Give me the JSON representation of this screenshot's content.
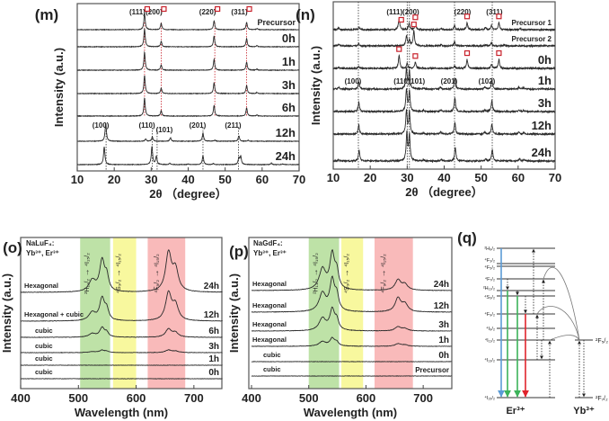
{
  "chart_data": [
    {
      "type": "line",
      "panel": "(m)",
      "xlabel": "2θ （degree）",
      "ylabel": "Intensity (a.u.)",
      "xlim": [
        10,
        70
      ],
      "xticks": [
        "10",
        "20",
        "30",
        "40",
        "50",
        "60",
        "70"
      ],
      "grid": false,
      "traces": [
        {
          "name": "Precursor",
          "peaks": [
            [
              28.2,
              0.9
            ],
            [
              32.7,
              0.35
            ],
            [
              47.0,
              0.5
            ],
            [
              55.8,
              0.4
            ],
            [
              58.6,
              0.06
            ]
          ]
        },
        {
          "name": "0h",
          "peaks": [
            [
              28.2,
              1.0
            ],
            [
              32.7,
              0.3
            ],
            [
              47.0,
              0.6
            ],
            [
              55.8,
              0.45
            ],
            [
              58.6,
              0.06
            ]
          ]
        },
        {
          "name": "1h",
          "peaks": [
            [
              28.2,
              1.0
            ],
            [
              32.7,
              0.3
            ],
            [
              47.0,
              0.6
            ],
            [
              55.8,
              0.45
            ],
            [
              58.6,
              0.06
            ]
          ]
        },
        {
          "name": "3h",
          "peaks": [
            [
              28.2,
              1.0
            ],
            [
              32.7,
              0.3
            ],
            [
              47.0,
              0.6
            ],
            [
              55.8,
              0.45
            ],
            [
              58.6,
              0.06
            ]
          ]
        },
        {
          "name": "6h",
          "peaks": [
            [
              28.2,
              1.0
            ],
            [
              32.7,
              0.3
            ],
            [
              47.0,
              0.6
            ],
            [
              55.8,
              0.45
            ],
            [
              58.6,
              0.06
            ]
          ]
        },
        {
          "name": "12h",
          "peaks": [
            [
              17.7,
              1.0
            ],
            [
              28.5,
              0.12
            ],
            [
              30.3,
              0.25
            ],
            [
              35.2,
              0.2
            ],
            [
              44.0,
              0.45
            ],
            [
              47.2,
              0.06
            ],
            [
              53.7,
              0.3
            ],
            [
              56.2,
              0.05
            ]
          ]
        },
        {
          "name": "24h",
          "peaks": [
            [
              17.3,
              1.0
            ],
            [
              30.2,
              1.0
            ],
            [
              31.4,
              0.45
            ],
            [
              35.0,
              0.08
            ],
            [
              40.0,
              0.04
            ],
            [
              44.0,
              0.5
            ],
            [
              46.8,
              0.06
            ],
            [
              53.7,
              0.35
            ],
            [
              54.2,
              0.45
            ],
            [
              62.5,
              0.08
            ],
            [
              65.5,
              0.04
            ]
          ]
        }
      ],
      "cubic_phase_color": "#c8202a",
      "cubic_hkl": [
        {
          "text": "(111)",
          "theta": 28.2
        },
        {
          "text": "(200)",
          "theta": 32.7
        },
        {
          "text": "(220)",
          "theta": 47.2
        },
        {
          "text": "(311)",
          "theta": 55.8
        }
      ],
      "cubic_markers": [
        {
          "trace": 0,
          "theta": 28.2
        },
        {
          "trace": 0,
          "theta": 32.7
        },
        {
          "trace": 0,
          "theta": 47.2
        },
        {
          "trace": 0,
          "theta": 55.8
        }
      ],
      "hex_hkl": [
        {
          "text": "(100)",
          "theta": 17.8
        },
        {
          "text": "(110)",
          "theta": 30.3
        },
        {
          "text": "(101)",
          "theta": 31.6
        },
        {
          "text": "(201)",
          "theta": 44.0
        },
        {
          "text": "(211)",
          "theta": 53.6
        }
      ]
    },
    {
      "type": "line",
      "panel": "(n)",
      "xlabel": "2θ （degree）",
      "ylabel": "Intensity (a.u.)",
      "xlim": [
        10,
        70
      ],
      "xticks": [
        "10",
        "20",
        "30",
        "40",
        "50",
        "60",
        "70"
      ],
      "grid": false,
      "traces": [
        {
          "name": "Precursor 1",
          "peaks": [
            [
              11.5,
              0.1
            ],
            [
              17.0,
              0.12
            ],
            [
              27.8,
              0.55
            ],
            [
              30.5,
              0.3
            ],
            [
              32.2,
              0.3
            ],
            [
              39.2,
              0.08
            ],
            [
              42.8,
              0.2
            ],
            [
              46.2,
              0.35
            ],
            [
              51.2,
              0.1
            ],
            [
              52.8,
              0.2
            ],
            [
              54.8,
              0.35
            ],
            [
              60.5,
              0.06
            ]
          ]
        },
        {
          "name": "Precursor 2",
          "peaks": [
            [
              11.5,
              0.06
            ],
            [
              16.9,
              0.12
            ],
            [
              29.8,
              0.5
            ],
            [
              30.6,
              0.3
            ],
            [
              31.8,
              0.75
            ],
            [
              39.2,
              0.06
            ],
            [
              42.8,
              0.2
            ],
            [
              51.2,
              0.06
            ],
            [
              52.8,
              0.15
            ],
            [
              56.2,
              0.05
            ]
          ]
        },
        {
          "name": "0h",
          "peaks": [
            [
              11.5,
              0.06
            ],
            [
              16.9,
              0.08
            ],
            [
              27.8,
              0.65
            ],
            [
              30.0,
              0.25
            ],
            [
              32.2,
              0.3
            ],
            [
              42.8,
              0.12
            ],
            [
              46.2,
              0.45
            ],
            [
              52.8,
              0.2
            ],
            [
              54.8,
              0.45
            ]
          ]
        },
        {
          "name": "1h",
          "peaks": [
            [
              11.5,
              0.1
            ],
            [
              16.9,
              0.35
            ],
            [
              29.8,
              1.0
            ],
            [
              30.6,
              0.9
            ],
            [
              34.4,
              0.06
            ],
            [
              39.0,
              0.1
            ],
            [
              42.9,
              0.55
            ],
            [
              51.0,
              0.12
            ],
            [
              52.9,
              0.45
            ],
            [
              60.2,
              0.1
            ],
            [
              61.5,
              0.06
            ]
          ]
        },
        {
          "name": "3h",
          "peaks": [
            [
              16.9,
              0.45
            ],
            [
              29.8,
              1.1
            ],
            [
              30.6,
              1.0
            ],
            [
              34.4,
              0.06
            ],
            [
              39.0,
              0.08
            ],
            [
              42.9,
              0.7
            ],
            [
              51.0,
              0.08
            ],
            [
              52.9,
              0.55
            ],
            [
              60.2,
              0.08
            ],
            [
              61.5,
              0.06
            ]
          ]
        },
        {
          "name": "12h",
          "peaks": [
            [
              16.9,
              0.45
            ],
            [
              29.8,
              1.2
            ],
            [
              30.6,
              1.1
            ],
            [
              34.4,
              0.06
            ],
            [
              39.0,
              0.1
            ],
            [
              42.9,
              0.6
            ],
            [
              51.0,
              0.1
            ],
            [
              52.9,
              0.5
            ],
            [
              60.2,
              0.1
            ],
            [
              61.5,
              0.06
            ]
          ]
        },
        {
          "name": "24h",
          "peaks": [
            [
              11.5,
              0.08
            ],
            [
              17.0,
              0.55
            ],
            [
              29.9,
              1.4
            ],
            [
              30.6,
              1.3
            ],
            [
              34.4,
              0.06
            ],
            [
              39.2,
              0.08
            ],
            [
              43.0,
              0.7
            ],
            [
              51.2,
              0.1
            ],
            [
              53.0,
              0.6
            ],
            [
              60.4,
              0.12
            ],
            [
              61.6,
              0.08
            ]
          ]
        }
      ],
      "cubic_phase_color": "#c8202a",
      "cubic_hkl": [
        {
          "text": "(111)",
          "theta": 27.8
        },
        {
          "text": "(200)",
          "theta": 32.2
        },
        {
          "text": "(220)",
          "theta": 46.2
        },
        {
          "text": "(311)",
          "theta": 54.8
        }
      ],
      "cubic_markers": [
        {
          "trace": 0,
          "theta": 28.4
        },
        {
          "trace": 0,
          "theta": 32.2
        },
        {
          "trace": 0,
          "theta": 46.2
        },
        {
          "trace": 0,
          "theta": 54.8
        },
        {
          "trace": 1,
          "theta": 31.8
        },
        {
          "trace": 2,
          "theta": 27.8
        },
        {
          "trace": 2,
          "theta": 32.2
        },
        {
          "trace": 2,
          "theta": 46.2
        },
        {
          "trace": 2,
          "theta": 54.8
        }
      ],
      "hex_hkl": [
        {
          "text": "(100)",
          "theta": 16.8
        },
        {
          "text": "(110)",
          "theta": 30.0
        },
        {
          "text": "(101)",
          "theta": 30.6
        },
        {
          "text": "(201)",
          "theta": 42.8
        },
        {
          "text": "(102)",
          "theta": 53.0
        }
      ]
    },
    {
      "type": "line",
      "panel": "(o)",
      "host": "NaLuF₄:",
      "dopants": "Yb³⁺, Er³⁺",
      "xlabel": "Wavelength (nm)",
      "ylabel": "Intensity (a.u.)",
      "xlim": [
        400,
        750
      ],
      "xticks": [
        "400",
        "500",
        "600",
        "700"
      ],
      "bands": [
        {
          "range": [
            503,
            555
          ],
          "color": "#a8d88a",
          "from": "²H₁₁/₂",
          "to": "⁴I₁₅/₂"
        },
        {
          "range": [
            560,
            600
          ],
          "color": "#f5f57e",
          "from": "⁴S₃/₂",
          "to": "⁴I₁₅/₂"
        },
        {
          "range": [
            620,
            685
          ],
          "color": "#f7a3a3",
          "from": "⁴F₉/₂",
          "to": "⁴I₁₅/₂"
        }
      ],
      "traces": [
        {
          "time": "24h",
          "phase": "Hexagonal",
          "green": 1.0,
          "red": 1.05
        },
        {
          "time": "12h",
          "phase": "Hexagonal + cubic",
          "green": 0.72,
          "red": 0.75
        },
        {
          "time": "6h",
          "phase": "cubic",
          "green": 0.3,
          "red": 0.22
        },
        {
          "time": "3h",
          "phase": "cubic",
          "green": 0.08,
          "red": 0.07
        },
        {
          "time": "1h",
          "phase": "cubic",
          "green": 0.0,
          "red": 0.0
        },
        {
          "time": "0h",
          "phase": "cubic",
          "green": 0.0,
          "red": 0.0
        }
      ]
    },
    {
      "type": "line",
      "panel": "(p)",
      "host": "NaGdF₄:",
      "dopants": "Yb³⁺, Er³⁺",
      "xlabel": "Wavelength (nm)",
      "ylabel": "Intensity (a.u.)",
      "xlim": [
        400,
        750
      ],
      "xticks": [
        "400",
        "500",
        "600",
        "700"
      ],
      "bands": [
        {
          "range": [
            500,
            553
          ],
          "color": "#a8d88a",
          "from": "²H₁₁/₂",
          "to": "⁴I₁₅/₂"
        },
        {
          "range": [
            557,
            595
          ],
          "color": "#f5f57e",
          "from": "⁴S₃/₂",
          "to": "⁴I₁₅/₂"
        },
        {
          "range": [
            615,
            682
          ],
          "color": "#f7a3a3",
          "from": "⁴F₉/₂",
          "to": "⁴I₁₅/₂"
        }
      ],
      "traces": [
        {
          "time": "24h",
          "phase": "Hexagonal",
          "green": 1.0,
          "red": 0.25
        },
        {
          "time": "12h",
          "phase": "Hexagonal",
          "green": 0.88,
          "red": 0.33
        },
        {
          "time": "3h",
          "phase": "Hexagonal",
          "green": 0.59,
          "red": 0.1
        },
        {
          "time": "1h",
          "phase": "Hexagonal",
          "green": 0.22,
          "red": 0.06
        },
        {
          "time": "0h",
          "phase": "cubic",
          "green": 0.0,
          "red": 0.0
        },
        {
          "time": "Precursor",
          "phase": "cubic",
          "green": 0.0,
          "red": 0.0
        }
      ]
    },
    {
      "type": "diagram",
      "panel": "(q)",
      "er_label": "Er³⁺",
      "yb_label": "Yb³⁺",
      "er_levels": [
        "²H₉/₂",
        "⁴F₃/₂",
        "⁴F₅/₂",
        "⁴F₇/₂",
        "²H₁₁/₂",
        "⁴S₃/₂",
        "⁴F₉/₂",
        "⁴I₉/₂",
        "⁴I₁₁/₂",
        "⁴I₁₃/₂",
        "⁴I₁₅/₂"
      ],
      "yb_levels": [
        "²F₅/₂",
        "²F₇/₂"
      ],
      "emissions": [
        {
          "from": "²H₉/₂",
          "to": "⁴I₁₅/₂",
          "color": "#5b9bd5"
        },
        {
          "from": "²H₁₁/₂",
          "to": "⁴I₁₅/₂",
          "color": "#3cb35a"
        },
        {
          "from": "⁴S₃/₂",
          "to": "⁴I₁₅/₂",
          "color": "#3cb35a"
        },
        {
          "from": "⁴F₉/₂",
          "to": "⁴I₁₅/₂",
          "color": "#e0242c"
        }
      ],
      "nonradiative": [
        {
          "from": "⁴F₇/₂",
          "to": "²H₁₁/₂"
        },
        {
          "from": "²H₁₁/₂",
          "to": "⁴S₃/₂"
        },
        {
          "from": "⁴S₃/₂",
          "to": "⁴F₉/₂"
        },
        {
          "from": "⁴I₁₁/₂",
          "to": "⁴I₁₃/₂"
        }
      ],
      "excitations": [
        {
          "from": "⁴F₉/₂",
          "to": "²H₉/₂"
        },
        {
          "from": "⁴I₁₃/₂",
          "to": "⁴F₉/₂"
        },
        {
          "from": "⁴I₁₁/₂",
          "to": "⁴F₇/₂"
        },
        {
          "from": "⁴I₁₅/₂",
          "to": "⁴I₁₁/₂"
        }
      ],
      "energy_transfer_to": [
        "⁴I₁₁/₂",
        "⁴F₉/₂",
        "⁴F₇/₂"
      ]
    }
  ]
}
